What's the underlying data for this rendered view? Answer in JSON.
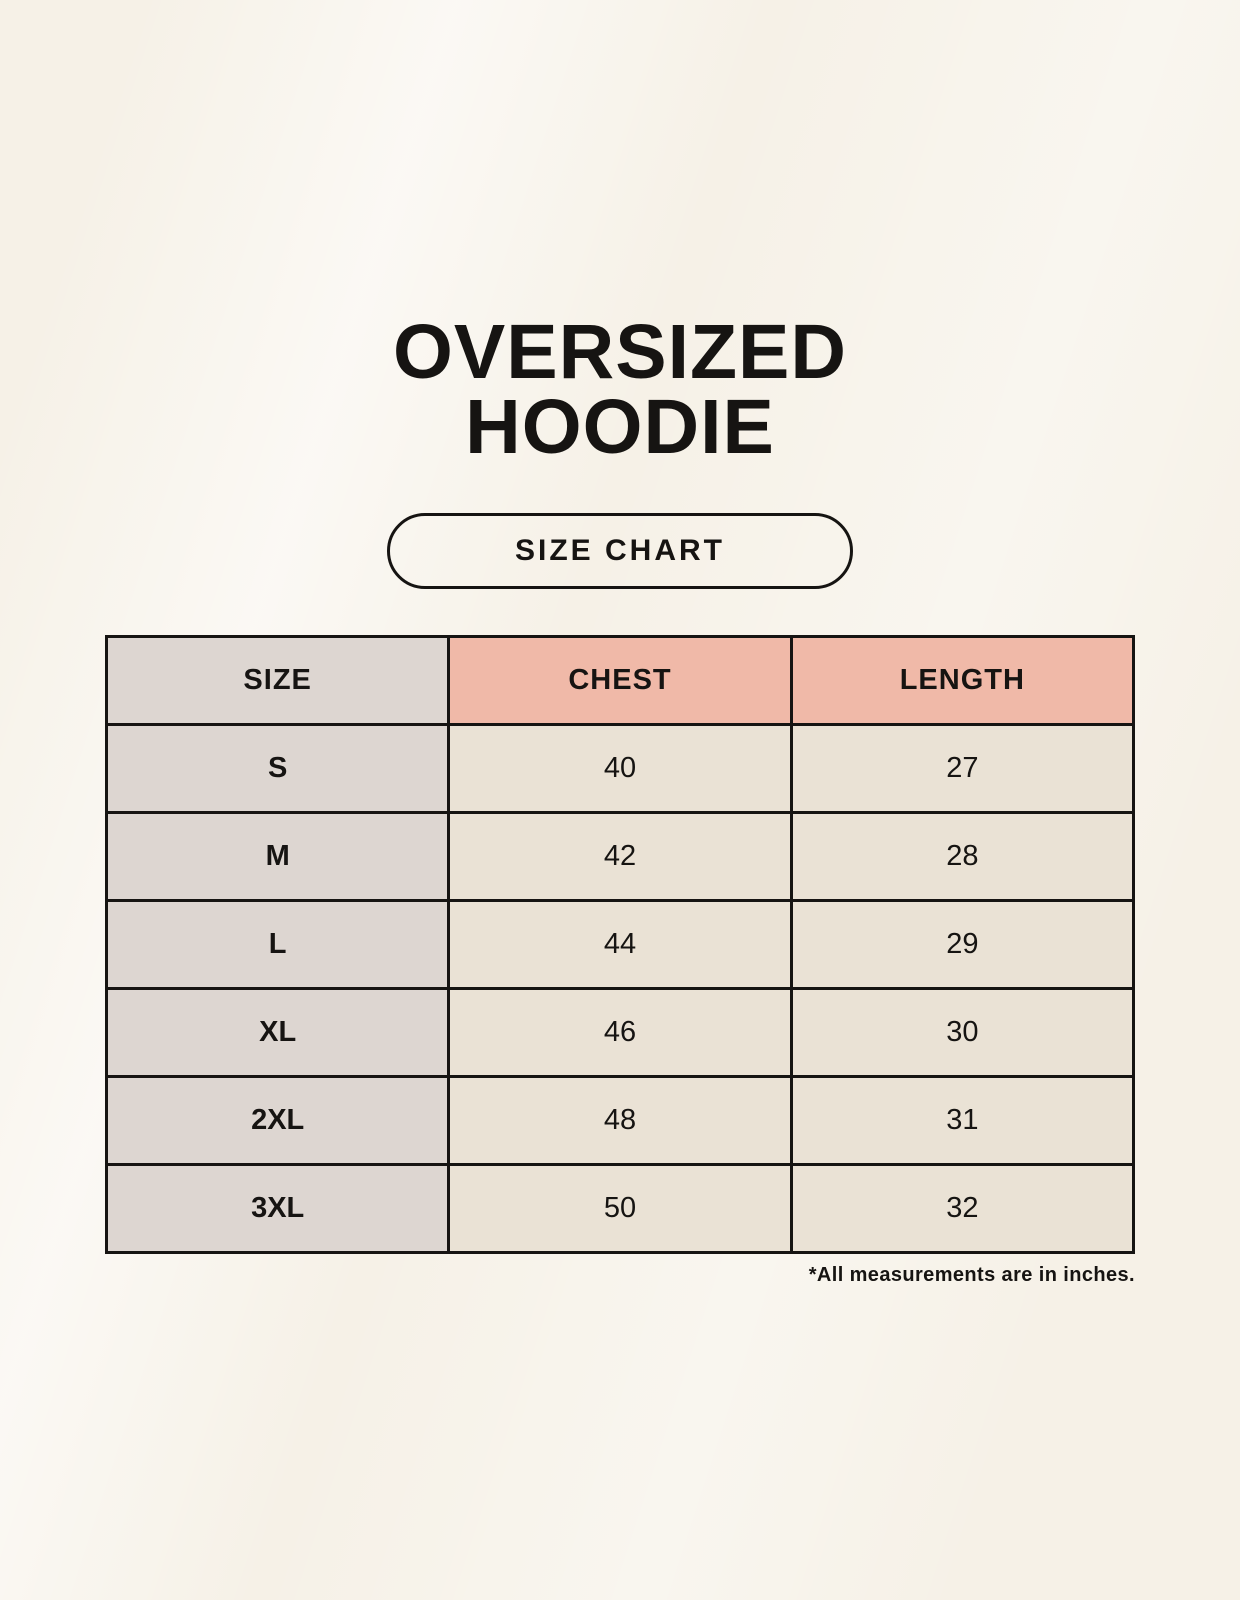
{
  "title": {
    "line1": "OVERSIZED",
    "line2": "HOODIE"
  },
  "size_chart_button": {
    "label": "SIZE CHART"
  },
  "table": {
    "columns": [
      "SIZE",
      "CHEST",
      "LENGTH"
    ],
    "rows": [
      {
        "size": "S",
        "chest": "40",
        "length": "27"
      },
      {
        "size": "M",
        "chest": "42",
        "length": "28"
      },
      {
        "size": "L",
        "chest": "44",
        "length": "29"
      },
      {
        "size": "XL",
        "chest": "46",
        "length": "30"
      },
      {
        "size": "2XL",
        "chest": "48",
        "length": "31"
      },
      {
        "size": "3XL",
        "chest": "50",
        "length": "32"
      }
    ]
  },
  "footnote": "*All measurements are in inches.",
  "colors": {
    "background": "#f6f1e7",
    "header_accent": "#f0b9a8",
    "size_column_bg": "#ddd6d1",
    "cell_bg": "#eae2d5",
    "border": "#161412",
    "text": "#161412"
  },
  "chart_data": {
    "type": "table",
    "title": "OVERSIZED HOODIE SIZE CHART",
    "columns": [
      "SIZE",
      "CHEST",
      "LENGTH"
    ],
    "rows": [
      [
        "S",
        40,
        27
      ],
      [
        "M",
        42,
        28
      ],
      [
        "L",
        44,
        29
      ],
      [
        "XL",
        46,
        30
      ],
      [
        "2XL",
        48,
        31
      ],
      [
        "3XL",
        50,
        32
      ]
    ],
    "units": "inches"
  }
}
